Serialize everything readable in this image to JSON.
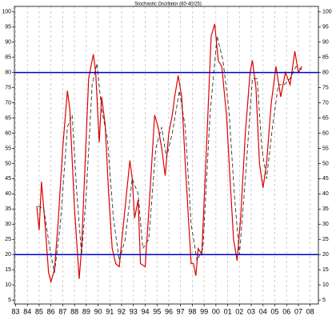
{
  "chart_data": {
    "type": "line",
    "title": "Stochastic Oscillator (60-40/25)",
    "xlim": [
      1982.9,
      2008.7
    ],
    "ylim": [
      3.7,
      101.8
    ],
    "xticks": [
      {
        "value": 1983,
        "label": "83"
      },
      {
        "value": 1984,
        "label": "84"
      },
      {
        "value": 1985,
        "label": "85"
      },
      {
        "value": 1986,
        "label": "86"
      },
      {
        "value": 1987,
        "label": "87"
      },
      {
        "value": 1988,
        "label": "88"
      },
      {
        "value": 1989,
        "label": "89"
      },
      {
        "value": 1990,
        "label": "90"
      },
      {
        "value": 1991,
        "label": "91"
      },
      {
        "value": 1992,
        "label": "92"
      },
      {
        "value": 1993,
        "label": "93"
      },
      {
        "value": 1994,
        "label": "94"
      },
      {
        "value": 1995,
        "label": "95"
      },
      {
        "value": 1996,
        "label": "96"
      },
      {
        "value": 1997,
        "label": "97"
      },
      {
        "value": 1998,
        "label": "98"
      },
      {
        "value": 1999,
        "label": "99"
      },
      {
        "value": 2000,
        "label": "00"
      },
      {
        "value": 2001,
        "label": "01"
      },
      {
        "value": 2002,
        "label": "02"
      },
      {
        "value": 2003,
        "label": "03"
      },
      {
        "value": 2004,
        "label": "04"
      },
      {
        "value": 2005,
        "label": "05"
      },
      {
        "value": 2006,
        "label": "06"
      },
      {
        "value": 2007,
        "label": "07"
      },
      {
        "value": 2008,
        "label": "08"
      }
    ],
    "yticks": [
      5,
      10,
      15,
      20,
      25,
      30,
      35,
      40,
      45,
      50,
      55,
      60,
      65,
      70,
      75,
      80,
      85,
      90,
      95,
      100
    ],
    "grid": true,
    "reference_lines": {
      "values": [
        80,
        20
      ],
      "color": "#0000cc"
    },
    "series": [
      {
        "color": "#e00000",
        "dash": false,
        "x": [
          1984.8,
          1985.0,
          1985.2,
          1985.5,
          1985.8,
          1986.0,
          1986.3,
          1986.6,
          1987.0,
          1987.4,
          1987.6,
          1988.0,
          1988.4,
          1988.6,
          1988.9,
          1989.2,
          1989.6,
          1989.8,
          1990.1,
          1990.3,
          1990.6,
          1990.9,
          1991.2,
          1991.5,
          1991.8,
          1992.1,
          1992.7,
          1992.9,
          1993.1,
          1993.4,
          1993.6,
          1994.0,
          1994.4,
          1994.8,
          1995.1,
          1995.4,
          1995.7,
          1996.0,
          1996.3,
          1996.5,
          1996.8,
          1997.1,
          1997.4,
          1997.7,
          1997.9,
          1998.1,
          1998.3,
          1998.5,
          1998.8,
          1999.2,
          1999.6,
          1999.9,
          2000.2,
          2000.5,
          2000.9,
          2001.2,
          2001.5,
          2001.8,
          2002.1,
          2002.5,
          2002.9,
          2003.1,
          2003.4,
          2003.7,
          2004.0,
          2004.3,
          2004.7,
          2005.1,
          2005.5,
          2005.9,
          2006.3,
          2006.7,
          2007.0,
          2007.3
        ],
        "values": [
          36,
          28,
          44,
          30,
          14,
          11,
          15,
          30,
          55,
          74,
          68,
          35,
          12,
          22,
          50,
          78,
          86,
          80,
          57,
          72,
          63,
          40,
          22,
          17,
          16,
          28,
          51,
          45,
          32,
          38,
          17,
          16,
          40,
          66,
          62,
          55,
          46,
          60,
          66,
          72,
          79,
          72,
          50,
          30,
          17,
          17,
          13,
          22,
          20,
          55,
          92,
          96,
          84,
          82,
          66,
          45,
          25,
          18,
          32,
          60,
          80,
          84,
          75,
          50,
          42,
          50,
          70,
          82,
          72,
          80,
          76,
          87,
          80,
          82
        ]
      },
      {
        "color": "#333333",
        "dash": true,
        "x": [
          1984.9,
          1985.4,
          1985.9,
          1986.3,
          1986.8,
          1987.4,
          1987.8,
          1988.2,
          1988.6,
          1989.0,
          1989.5,
          1989.9,
          1990.3,
          1990.8,
          1991.3,
          1991.8,
          1992.3,
          1992.9,
          1993.4,
          1993.8,
          1994.3,
          1994.9,
          1995.4,
          1995.8,
          1996.3,
          1996.9,
          1997.4,
          1997.9,
          1998.4,
          1998.9,
          1999.5,
          2000.1,
          2000.6,
          2001.1,
          2001.6,
          2002.0,
          2002.5,
          2003.1,
          2003.5,
          2003.9,
          2004.3,
          2004.8,
          2005.3,
          2005.8,
          2006.3,
          2006.8,
          2007.3
        ],
        "values": [
          36,
          35,
          22,
          14,
          30,
          62,
          66,
          40,
          20,
          40,
          76,
          83,
          68,
          58,
          32,
          18,
          25,
          45,
          40,
          22,
          25,
          55,
          62,
          52,
          60,
          74,
          62,
          30,
          18,
          22,
          66,
          92,
          84,
          68,
          38,
          20,
          45,
          78,
          78,
          55,
          45,
          62,
          76,
          76,
          78,
          82,
          81
        ]
      }
    ]
  }
}
